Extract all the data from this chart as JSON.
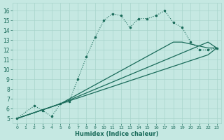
{
  "xlabel": "Humidex (Indice chaleur)",
  "xlim": [
    -0.5,
    23.5
  ],
  "ylim": [
    4.5,
    16.8
  ],
  "xticks": [
    0,
    1,
    2,
    3,
    4,
    5,
    6,
    7,
    8,
    9,
    10,
    11,
    12,
    13,
    14,
    15,
    16,
    17,
    18,
    19,
    20,
    21,
    22,
    23
  ],
  "yticks": [
    5,
    6,
    7,
    8,
    9,
    10,
    11,
    12,
    13,
    14,
    15,
    16
  ],
  "bg_color": "#c5e8e2",
  "grid_color": "#a8d4cc",
  "line_color": "#1a6b5a",
  "line1_x": [
    0,
    2,
    3,
    4,
    5,
    6,
    7,
    8,
    9,
    10,
    11,
    12,
    13,
    14,
    15,
    16,
    17,
    18,
    19,
    20,
    21,
    22,
    23
  ],
  "line1_y": [
    5.0,
    6.3,
    5.8,
    5.2,
    6.5,
    6.7,
    9.0,
    11.3,
    13.3,
    15.0,
    15.7,
    15.5,
    14.3,
    15.2,
    15.2,
    15.5,
    16.0,
    14.8,
    14.3,
    12.8,
    12.0,
    12.0,
    12.2
  ],
  "line2_x": [
    0,
    5,
    22,
    23
  ],
  "line2_y": [
    5.0,
    6.5,
    12.8,
    12.2
  ],
  "line3_x": [
    0,
    5,
    18,
    19,
    22,
    23
  ],
  "line3_y": [
    5.0,
    6.5,
    12.8,
    12.8,
    12.2,
    12.2
  ],
  "line4_x": [
    0,
    5,
    22,
    23
  ],
  "line4_y": [
    5.0,
    6.5,
    11.5,
    12.2
  ]
}
